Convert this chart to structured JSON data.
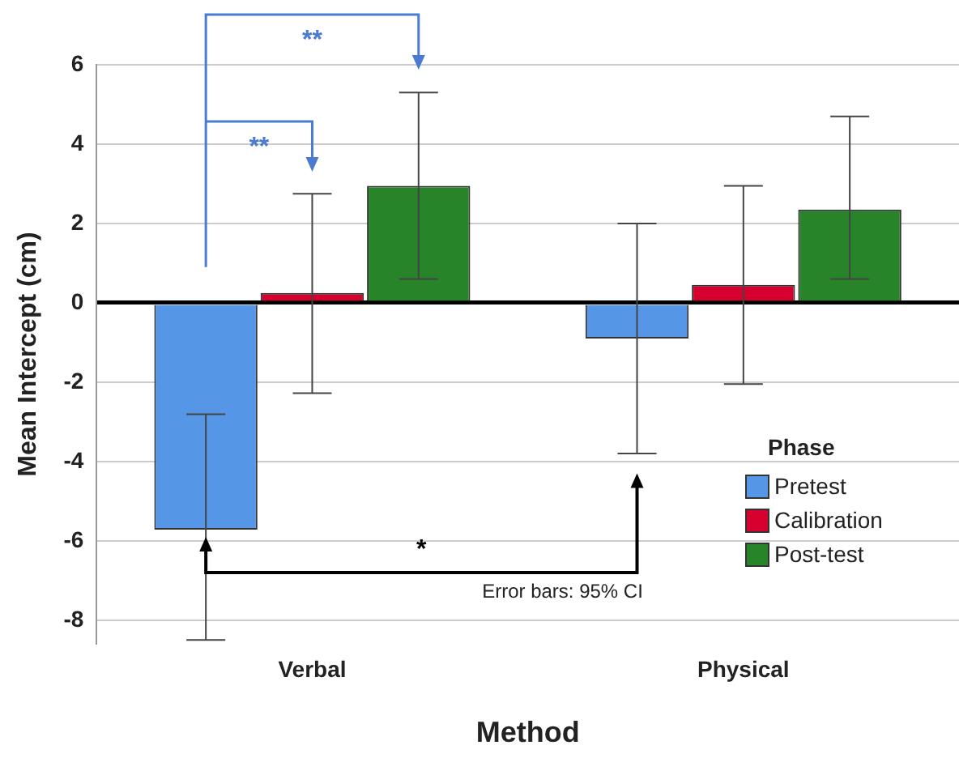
{
  "chart_data": {
    "type": "bar",
    "xlabel": "Method",
    "ylabel": "Mean Intercept (cm)",
    "legend_title": "Phase",
    "legend": "bottom right",
    "grid": "y",
    "categories": [
      "Verbal",
      "Physical"
    ],
    "series": [
      {
        "name": "Pretest",
        "color": "#5596e6",
        "values": [
          -5.72,
          -0.9
        ],
        "errors": [
          [
            -8.5,
            -2.81
          ],
          [
            -3.8,
            2.0
          ]
        ]
      },
      {
        "name": "Calibration",
        "color": "#d70130",
        "values": [
          0.25,
          0.45
        ],
        "errors": [
          [
            -2.28,
            2.75
          ],
          [
            -2.05,
            2.95
          ]
        ]
      },
      {
        "name": "Post-test",
        "color": "#288428",
        "values": [
          2.95,
          2.35
        ],
        "errors": [
          [
            0.6,
            5.3
          ],
          [
            0.6,
            4.7
          ]
        ]
      }
    ],
    "ylim": [
      -8.6,
      6
    ],
    "yticks": [
      -8,
      -6,
      -4,
      -2,
      0,
      2,
      4,
      6
    ],
    "annotations": [
      "**",
      "**",
      "*",
      "Error bars: 95% CI"
    ]
  }
}
